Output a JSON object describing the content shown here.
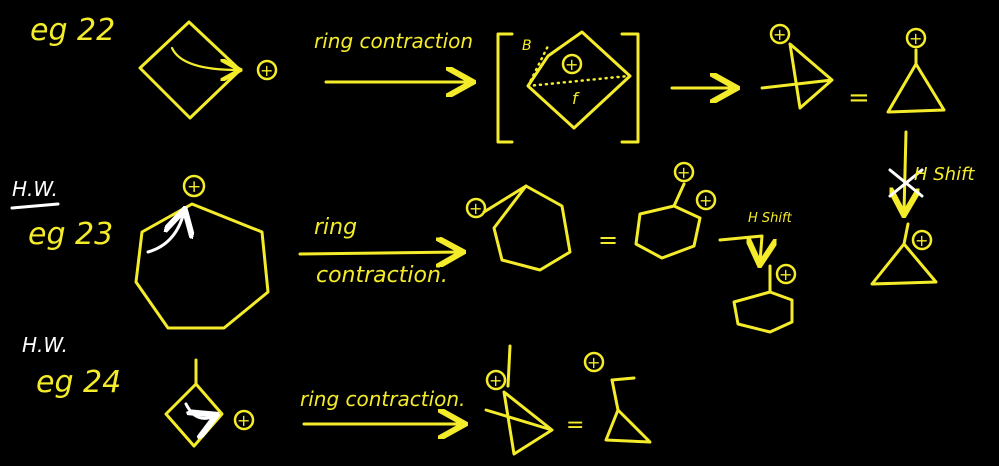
{
  "examples": [
    {
      "label": "eg 22",
      "reaction_text": "ring contraction"
    },
    {
      "hw_label": "H.W.",
      "label": "eg 23",
      "reaction_text_line1": "ring",
      "reaction_text_line2": "contraction.",
      "note_shift": "H Shift"
    },
    {
      "hw_label": "H.W.",
      "label": "eg 24",
      "reaction_text": "ring contraction."
    }
  ],
  "intermediate_labels": {
    "beta": "B",
    "f": "f"
  },
  "right_column": {
    "shift_label": "H Shift"
  },
  "symbols": {
    "plus": "+",
    "equals": "="
  },
  "colors": {
    "background": "#000000",
    "ink": "#f4ec2a",
    "pointer": "#ffffff"
  }
}
